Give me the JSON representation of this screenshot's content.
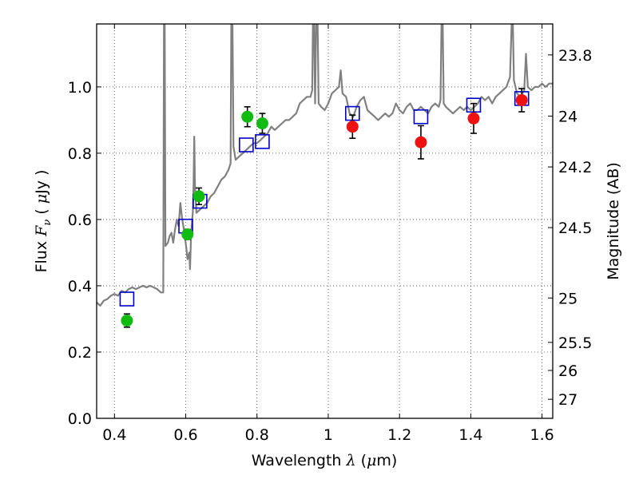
{
  "chart_data": {
    "type": "scatter",
    "title": "",
    "xlabel": {
      "prefix": "Wavelength ",
      "symbol": "λ",
      "unit_open": " (",
      "unit_symbol": "μ",
      "unit_rest": "m)"
    },
    "ylabel": {
      "prefix": "Flux  ",
      "symbol": "F",
      "subscript": "ν",
      "unit_open": "  ( ",
      "unit_symbol": "μ",
      "unit_rest": "Jy )"
    },
    "y2label": "Magnitude (AB)",
    "xlim": [
      0.35,
      1.63
    ],
    "ylim": [
      0.0,
      1.19
    ],
    "grid": true,
    "grid_style": "dotted",
    "x_ticks": [
      0.4,
      0.6,
      0.8,
      1.0,
      1.2,
      1.4,
      1.6
    ],
    "x_tick_labels": [
      "0.4",
      "0.6",
      "0.8",
      "1",
      "1.2",
      "1.4",
      "1.6"
    ],
    "y_ticks": [
      0.0,
      0.2,
      0.4,
      0.6,
      0.8,
      1.0
    ],
    "y_tick_labels": [
      "0.0",
      "0.2",
      "0.4",
      "0.6",
      "0.8",
      "1.0"
    ],
    "y2_ticks": [
      {
        "label": "23.8",
        "flux": 1.0965
      },
      {
        "label": "24",
        "flux": 0.912
      },
      {
        "label": "24.2",
        "flux": 0.7586
      },
      {
        "label": "24.5",
        "flux": 0.5754
      },
      {
        "label": "25",
        "flux": 0.3631
      },
      {
        "label": "25.5",
        "flux": 0.2291
      },
      {
        "label": "26",
        "flux": 0.1445
      },
      {
        "label": "27",
        "flux": 0.0575
      }
    ],
    "colors": {
      "model_line": "#808080",
      "green_points": "#11bb11",
      "red_points": "#ee1111",
      "model_squares": "#0000cc",
      "error_bars": "#000000",
      "grid": "#444444"
    },
    "series": [
      {
        "kind": "model_spectrum",
        "points": [
          [
            0.35,
            0.35
          ],
          [
            0.36,
            0.34
          ],
          [
            0.37,
            0.355
          ],
          [
            0.38,
            0.36
          ],
          [
            0.39,
            0.37
          ],
          [
            0.4,
            0.375
          ],
          [
            0.41,
            0.37
          ],
          [
            0.42,
            0.385
          ],
          [
            0.43,
            0.38
          ],
          [
            0.44,
            0.39
          ],
          [
            0.45,
            0.395
          ],
          [
            0.46,
            0.39
          ],
          [
            0.47,
            0.395
          ],
          [
            0.48,
            0.4
          ],
          [
            0.49,
            0.395
          ],
          [
            0.5,
            0.4
          ],
          [
            0.51,
            0.395
          ],
          [
            0.52,
            0.39
          ],
          [
            0.53,
            0.38
          ],
          [
            0.537,
            0.38
          ],
          [
            0.539,
            1.2
          ],
          [
            0.541,
            1.2
          ],
          [
            0.543,
            0.52
          ],
          [
            0.55,
            0.53
          ],
          [
            0.555,
            0.55
          ],
          [
            0.56,
            0.56
          ],
          [
            0.565,
            0.53
          ],
          [
            0.57,
            0.57
          ],
          [
            0.575,
            0.6
          ],
          [
            0.58,
            0.58
          ],
          [
            0.585,
            0.65
          ],
          [
            0.59,
            0.6
          ],
          [
            0.595,
            0.57
          ],
          [
            0.6,
            0.53
          ],
          [
            0.605,
            0.48
          ],
          [
            0.61,
            0.5
          ],
          [
            0.612,
            0.45
          ],
          [
            0.615,
            0.55
          ],
          [
            0.618,
            0.6
          ],
          [
            0.62,
            0.62
          ],
          [
            0.622,
            0.7
          ],
          [
            0.624,
            0.85
          ],
          [
            0.626,
            0.7
          ],
          [
            0.63,
            0.62
          ],
          [
            0.64,
            0.63
          ],
          [
            0.65,
            0.64
          ],
          [
            0.66,
            0.65
          ],
          [
            0.67,
            0.67
          ],
          [
            0.68,
            0.68
          ],
          [
            0.69,
            0.7
          ],
          [
            0.7,
            0.72
          ],
          [
            0.71,
            0.73
          ],
          [
            0.72,
            0.75
          ],
          [
            0.726,
            0.77
          ],
          [
            0.728,
            1.2
          ],
          [
            0.731,
            1.2
          ],
          [
            0.734,
            0.82
          ],
          [
            0.74,
            0.78
          ],
          [
            0.75,
            0.79
          ],
          [
            0.76,
            0.8
          ],
          [
            0.77,
            0.81
          ],
          [
            0.78,
            0.82
          ],
          [
            0.79,
            0.83
          ],
          [
            0.8,
            0.83
          ],
          [
            0.81,
            0.84
          ],
          [
            0.82,
            0.85
          ],
          [
            0.83,
            0.86
          ],
          [
            0.84,
            0.88
          ],
          [
            0.85,
            0.87
          ],
          [
            0.86,
            0.88
          ],
          [
            0.87,
            0.89
          ],
          [
            0.88,
            0.9
          ],
          [
            0.89,
            0.9
          ],
          [
            0.9,
            0.91
          ],
          [
            0.91,
            0.92
          ],
          [
            0.92,
            0.95
          ],
          [
            0.93,
            0.96
          ],
          [
            0.94,
            0.97
          ],
          [
            0.95,
            0.97
          ],
          [
            0.955,
            0.99
          ],
          [
            0.957,
            1.2
          ],
          [
            0.96,
            1.2
          ],
          [
            0.963,
            0.95
          ],
          [
            0.966,
            1.2
          ],
          [
            0.97,
            1.2
          ],
          [
            0.973,
            0.95
          ],
          [
            0.98,
            0.94
          ],
          [
            0.99,
            0.93
          ],
          [
            1.0,
            0.95
          ],
          [
            1.01,
            0.98
          ],
          [
            1.02,
            0.99
          ],
          [
            1.03,
            1.0
          ],
          [
            1.035,
            1.05
          ],
          [
            1.04,
            0.98
          ],
          [
            1.05,
            0.97
          ],
          [
            1.06,
            0.92
          ],
          [
            1.07,
            0.91
          ],
          [
            1.08,
            0.94
          ],
          [
            1.09,
            0.96
          ],
          [
            1.1,
            0.97
          ],
          [
            1.11,
            0.93
          ],
          [
            1.12,
            0.92
          ],
          [
            1.13,
            0.91
          ],
          [
            1.14,
            0.9
          ],
          [
            1.15,
            0.91
          ],
          [
            1.16,
            0.92
          ],
          [
            1.17,
            0.91
          ],
          [
            1.18,
            0.92
          ],
          [
            1.19,
            0.95
          ],
          [
            1.2,
            0.93
          ],
          [
            1.21,
            0.92
          ],
          [
            1.22,
            0.94
          ],
          [
            1.23,
            0.95
          ],
          [
            1.24,
            0.93
          ],
          [
            1.25,
            0.93
          ],
          [
            1.26,
            0.94
          ],
          [
            1.27,
            0.93
          ],
          [
            1.28,
            0.92
          ],
          [
            1.29,
            0.94
          ],
          [
            1.3,
            0.95
          ],
          [
            1.31,
            0.94
          ],
          [
            1.315,
            0.96
          ],
          [
            1.318,
            1.2
          ],
          [
            1.321,
            1.2
          ],
          [
            1.324,
            0.95
          ],
          [
            1.33,
            0.94
          ],
          [
            1.34,
            0.93
          ],
          [
            1.35,
            0.92
          ],
          [
            1.36,
            0.93
          ],
          [
            1.37,
            0.94
          ],
          [
            1.38,
            0.93
          ],
          [
            1.39,
            0.94
          ],
          [
            1.4,
            0.93
          ],
          [
            1.41,
            0.94
          ],
          [
            1.42,
            0.95
          ],
          [
            1.43,
            0.97
          ],
          [
            1.44,
            0.96
          ],
          [
            1.45,
            0.97
          ],
          [
            1.46,
            0.95
          ],
          [
            1.47,
            0.97
          ],
          [
            1.48,
            0.98
          ],
          [
            1.49,
            0.99
          ],
          [
            1.5,
            1.0
          ],
          [
            1.51,
            1.03
          ],
          [
            1.515,
            1.2
          ],
          [
            1.518,
            1.2
          ],
          [
            1.521,
            1.02
          ],
          [
            1.53,
            0.98
          ],
          [
            1.54,
            0.97
          ],
          [
            1.55,
            0.99
          ],
          [
            1.555,
            1.1
          ],
          [
            1.56,
            1.0
          ],
          [
            1.57,
            0.99
          ],
          [
            1.58,
            1.0
          ],
          [
            1.59,
            1.0
          ],
          [
            1.6,
            1.01
          ],
          [
            1.61,
            1.0
          ],
          [
            1.62,
            1.01
          ],
          [
            1.63,
            1.01
          ]
        ]
      },
      {
        "kind": "observed_green",
        "points": [
          {
            "x": 0.435,
            "y": 0.295,
            "err": 0.02
          },
          {
            "x": 0.605,
            "y": 0.555,
            "err": 0.015
          },
          {
            "x": 0.637,
            "y": 0.67,
            "err": 0.025
          },
          {
            "x": 0.773,
            "y": 0.91,
            "err": 0.03
          },
          {
            "x": 0.815,
            "y": 0.89,
            "err": 0.03
          }
        ]
      },
      {
        "kind": "observed_red",
        "points": [
          {
            "x": 1.068,
            "y": 0.88,
            "err": 0.035
          },
          {
            "x": 1.26,
            "y": 0.833,
            "err": 0.05
          },
          {
            "x": 1.408,
            "y": 0.905,
            "err": 0.045
          },
          {
            "x": 1.543,
            "y": 0.96,
            "err": 0.035
          }
        ]
      },
      {
        "kind": "model_squares",
        "points": [
          {
            "x": 0.435,
            "y": 0.36
          },
          {
            "x": 0.6,
            "y": 0.58
          },
          {
            "x": 0.64,
            "y": 0.655
          },
          {
            "x": 0.77,
            "y": 0.825
          },
          {
            "x": 0.815,
            "y": 0.835
          },
          {
            "x": 1.068,
            "y": 0.92
          },
          {
            "x": 1.26,
            "y": 0.91
          },
          {
            "x": 1.408,
            "y": 0.945
          },
          {
            "x": 1.543,
            "y": 0.965
          }
        ]
      }
    ]
  }
}
